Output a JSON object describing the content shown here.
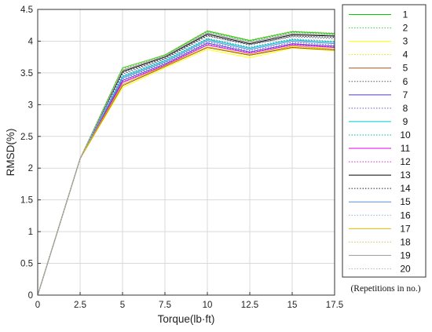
{
  "chart_data": {
    "type": "line",
    "title": "",
    "xlabel": "Torque(lb·ft)",
    "ylabel": "RMSD(%)",
    "xlim": [
      0,
      17.5
    ],
    "ylim": [
      0,
      4.5
    ],
    "x": [
      0,
      2.5,
      5,
      7.5,
      10,
      12.5,
      15,
      17.5
    ],
    "xticks": [
      "0",
      "2.5",
      "5",
      "7.5",
      "10",
      "12.5",
      "15",
      "17.5"
    ],
    "yticks": [
      "0",
      "0.5",
      "1",
      "1.5",
      "2",
      "2.5",
      "3",
      "3.5",
      "4",
      "4.5"
    ],
    "grid": true,
    "legend_position": "right",
    "legend_note": "(Repetitions in no.)",
    "series": [
      {
        "name": "1",
        "color": "#00cc00",
        "dash": "solid",
        "values": [
          0,
          2.15,
          3.58,
          3.78,
          4.16,
          4.01,
          4.15,
          4.12
        ]
      },
      {
        "name": "2",
        "color": "#33cc33",
        "dash": "dotted",
        "values": [
          0,
          2.15,
          3.56,
          3.77,
          4.15,
          4.0,
          4.14,
          4.11
        ]
      },
      {
        "name": "3",
        "color": "#ffff00",
        "dash": "solid",
        "values": [
          0,
          2.15,
          3.27,
          3.58,
          3.87,
          3.74,
          3.89,
          3.85
        ]
      },
      {
        "name": "4",
        "color": "#e6e600",
        "dash": "dotted",
        "values": [
          0,
          2.15,
          3.3,
          3.6,
          3.9,
          3.77,
          3.91,
          3.87
        ]
      },
      {
        "name": "5",
        "color": "#a0522d",
        "dash": "solid",
        "values": [
          0,
          2.15,
          3.3,
          3.6,
          3.9,
          3.78,
          3.9,
          3.86
        ]
      },
      {
        "name": "6",
        "color": "#555555",
        "dash": "dotted",
        "values": [
          0,
          2.15,
          3.48,
          3.72,
          4.08,
          3.95,
          4.07,
          4.04
        ]
      },
      {
        "name": "7",
        "color": "#4b3ccc",
        "dash": "solid",
        "values": [
          0,
          2.15,
          3.38,
          3.64,
          3.97,
          3.83,
          3.96,
          3.92
        ]
      },
      {
        "name": "8",
        "color": "#6a5acd",
        "dash": "dotted",
        "values": [
          0,
          2.15,
          3.4,
          3.66,
          3.99,
          3.85,
          3.98,
          3.94
        ]
      },
      {
        "name": "9",
        "color": "#00cccc",
        "dash": "solid",
        "values": [
          0,
          2.15,
          3.44,
          3.69,
          4.03,
          3.89,
          4.02,
          3.98
        ]
      },
      {
        "name": "10",
        "color": "#00b3b3",
        "dash": "dotted",
        "values": [
          0,
          2.15,
          3.45,
          3.7,
          4.04,
          3.9,
          4.03,
          3.99
        ]
      },
      {
        "name": "11",
        "color": "#e600e6",
        "dash": "solid",
        "values": [
          0,
          2.15,
          3.35,
          3.62,
          3.94,
          3.81,
          3.94,
          3.9
        ]
      },
      {
        "name": "12",
        "color": "#cc33cc",
        "dash": "dotted",
        "values": [
          0,
          2.15,
          3.36,
          3.63,
          3.95,
          3.82,
          3.95,
          3.91
        ]
      },
      {
        "name": "13",
        "color": "#000000",
        "dash": "solid",
        "values": [
          0,
          2.15,
          3.52,
          3.75,
          4.11,
          3.96,
          4.1,
          4.08
        ]
      },
      {
        "name": "14",
        "color": "#222244",
        "dash": "dotted",
        "values": [
          0,
          2.15,
          3.5,
          3.73,
          4.09,
          3.94,
          4.08,
          4.06
        ]
      },
      {
        "name": "15",
        "color": "#5b8fd6",
        "dash": "solid",
        "values": [
          0,
          2.15,
          3.42,
          3.67,
          4.01,
          3.87,
          4.0,
          3.96
        ]
      },
      {
        "name": "16",
        "color": "#8fb0e0",
        "dash": "dotted",
        "values": [
          0,
          2.15,
          3.46,
          3.71,
          4.05,
          3.91,
          4.04,
          4.0
        ]
      },
      {
        "name": "17",
        "color": "#e6b800",
        "dash": "solid",
        "values": [
          0,
          2.15,
          3.32,
          3.61,
          3.91,
          3.79,
          3.92,
          3.88
        ]
      },
      {
        "name": "18",
        "color": "#d4c060",
        "dash": "dotted",
        "values": [
          0,
          2.15,
          3.57,
          3.79,
          4.17,
          4.02,
          4.16,
          4.13
        ]
      },
      {
        "name": "19",
        "color": "#999999",
        "dash": "solid",
        "values": [
          0,
          2.15,
          3.54,
          3.76,
          4.13,
          3.98,
          4.12,
          4.09
        ]
      },
      {
        "name": "20",
        "color": "#b5b5b5",
        "dash": "dotted",
        "values": [
          0,
          2.15,
          3.55,
          3.77,
          4.14,
          3.99,
          4.13,
          4.1
        ]
      }
    ]
  }
}
